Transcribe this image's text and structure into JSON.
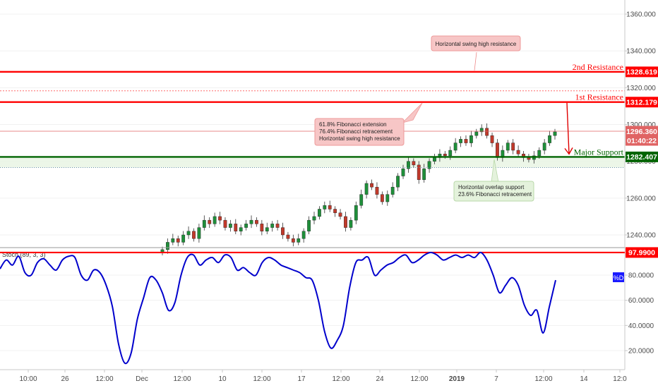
{
  "chart_data": [
    {
      "type": "candlestick",
      "title": "",
      "ylim": [
        1230,
        1368
      ],
      "y_ticks": [
        "1360.000",
        "1340.000",
        "1320.000",
        "1300.000",
        "1280.000",
        "1260.000",
        "1240.000"
      ],
      "levels": [
        {
          "name": "2nd Resistance",
          "value": 1328.619,
          "tag": "1328.619",
          "color": "#ff0000"
        },
        {
          "name": "1st Resistance",
          "value": 1312.179,
          "tag": "1312.179",
          "color": "#ff0000"
        },
        {
          "name": "Major Support",
          "value": 1282.407,
          "tag": "1282.407",
          "color": "#006400"
        }
      ],
      "last_price": {
        "value": 1296.36,
        "tag": "1296.360",
        "countdown": "01:40:22",
        "color": "#e06464"
      },
      "annotations": [
        {
          "text": "Horizontal swing high resistance",
          "color": "red"
        },
        {
          "lines": [
            "61.8% Fibonacci extension",
            "76.4% Fibonacci retracement",
            "Horizontal swing high resistance"
          ],
          "color": "red"
        },
        {
          "lines": [
            "Horizontal overlap support",
            "23.6% Fibonacci retracement"
          ],
          "color": "green"
        }
      ],
      "close_series": [
        1232,
        1236,
        1238,
        1236,
        1240,
        1242,
        1238,
        1244,
        1248,
        1246,
        1250,
        1248,
        1244,
        1246,
        1242,
        1244,
        1246,
        1248,
        1246,
        1242,
        1244,
        1246,
        1244,
        1240,
        1238,
        1236,
        1238,
        1242,
        1248,
        1250,
        1254,
        1256,
        1254,
        1252,
        1250,
        1244,
        1248,
        1256,
        1262,
        1268,
        1266,
        1262,
        1258,
        1262,
        1266,
        1272,
        1276,
        1280,
        1278,
        1270,
        1276,
        1280,
        1282,
        1284,
        1283,
        1286,
        1290,
        1292,
        1290,
        1294,
        1296,
        1298,
        1294,
        1290,
        1282,
        1286,
        1290,
        1286,
        1284,
        1282,
        1281,
        1283,
        1286,
        1290,
        1294,
        1296
      ]
    },
    {
      "type": "line",
      "indicator": "Stoch (89, 3, 3)",
      "series_name": "%D",
      "ylim": [
        8,
        100
      ],
      "y_ticks": [
        "80.0000",
        "60.0000",
        "40.0000",
        "20.0000"
      ],
      "level": {
        "value": 97.99,
        "tag": "97.9900",
        "color": "#ff0000"
      },
      "values": [
        85,
        92,
        88,
        95,
        82,
        80,
        90,
        93,
        88,
        84,
        92,
        95,
        94,
        80,
        76,
        84,
        82,
        72,
        55,
        25,
        10,
        18,
        45,
        62,
        78,
        76,
        66,
        52,
        58,
        80,
        94,
        96,
        88,
        92,
        94,
        90,
        96,
        94,
        84,
        86,
        82,
        80,
        90,
        94,
        92,
        88,
        86,
        84,
        82,
        78,
        76,
        60,
        35,
        22,
        28,
        40,
        70,
        90,
        92,
        94,
        80,
        84,
        88,
        90,
        94,
        96,
        90,
        92,
        96,
        98,
        96,
        92,
        94,
        96,
        94,
        96,
        94,
        98,
        92,
        80,
        66,
        72,
        78,
        72,
        56,
        48,
        52,
        34,
        55,
        76
      ],
      "x_labels": [
        "10:00",
        "26",
        "12:00",
        "Dec",
        "12:00",
        "10",
        "12:00",
        "17",
        "12:00",
        "24",
        "12:00",
        "2019",
        "7",
        "12:00",
        "14",
        "12:0"
      ]
    }
  ]
}
